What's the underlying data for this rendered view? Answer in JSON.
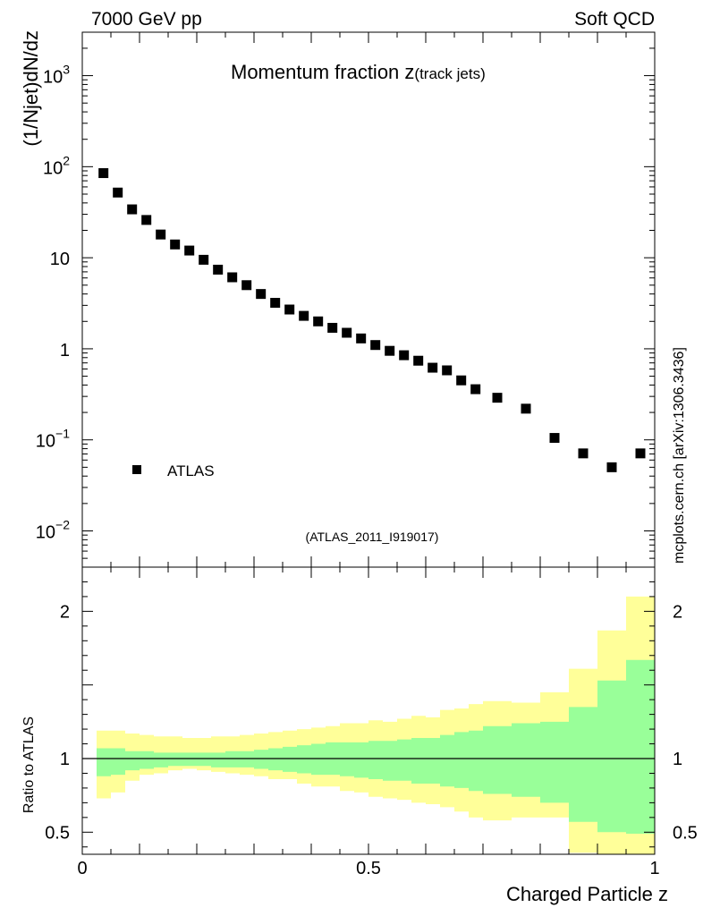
{
  "header": {
    "left": "7000 GeV pp",
    "right": "Soft QCD"
  },
  "watermark": "mcplots.cern.ch [arXiv:1306.3436]",
  "chart_data": [
    {
      "type": "scatter",
      "title_main": "Momentum fraction ",
      "title_z": "z",
      "title_sub": "(track jets)",
      "ylabel": "(1/Njet)dN/dz",
      "xlim": [
        0,
        1
      ],
      "ylim_log": [
        0.004,
        3000
      ],
      "yscale": "log",
      "ytick_labels": [
        {
          "value": 0.01,
          "base": "10",
          "exp": "−2"
        },
        {
          "value": 0.1,
          "base": "10",
          "exp": "−1"
        },
        {
          "value": 1,
          "base": "1",
          "exp": ""
        },
        {
          "value": 10,
          "base": "10",
          "exp": ""
        },
        {
          "value": 100,
          "base": "10",
          "exp": "2"
        },
        {
          "value": 1000,
          "base": "10",
          "exp": "3"
        }
      ],
      "legend": {
        "label": "ATLAS",
        "placement": "lower-left"
      },
      "analysis_label": "(ATLAS_2011_I919017)",
      "series": [
        {
          "name": "ATLAS",
          "marker": "square",
          "color": "#000000",
          "x": [
            0.037,
            0.062,
            0.087,
            0.112,
            0.137,
            0.162,
            0.187,
            0.212,
            0.237,
            0.262,
            0.287,
            0.312,
            0.337,
            0.362,
            0.387,
            0.412,
            0.437,
            0.462,
            0.487,
            0.512,
            0.537,
            0.562,
            0.587,
            0.612,
            0.637,
            0.662,
            0.687,
            0.725,
            0.775,
            0.825,
            0.875,
            0.925,
            0.975
          ],
          "y": [
            85,
            52,
            34,
            26,
            18,
            14,
            12,
            9.5,
            7.4,
            6.1,
            5.0,
            4.0,
            3.2,
            2.7,
            2.3,
            2.0,
            1.7,
            1.5,
            1.3,
            1.1,
            0.95,
            0.85,
            0.74,
            0.62,
            0.58,
            0.45,
            0.36,
            0.29,
            0.22,
            0.105,
            0.071,
            0.05,
            0.071
          ]
        }
      ]
    },
    {
      "type": "area",
      "ylabel": "Ratio to ATLAS",
      "xlabel": "Charged Particle z",
      "xlim": [
        0,
        1
      ],
      "ylim": [
        0.35,
        2.3
      ],
      "yticks": [
        0.5,
        1,
        2
      ],
      "ytick_labels": [
        "0.5",
        "1",
        "2"
      ],
      "xticks": [
        0,
        0.5,
        1
      ],
      "xtick_labels": [
        "0",
        "0.5",
        "1"
      ],
      "reference_line": 1,
      "bin_edges": [
        0.025,
        0.05,
        0.075,
        0.1,
        0.125,
        0.15,
        0.175,
        0.2,
        0.225,
        0.25,
        0.275,
        0.3,
        0.325,
        0.35,
        0.375,
        0.4,
        0.425,
        0.45,
        0.475,
        0.5,
        0.525,
        0.55,
        0.575,
        0.6,
        0.625,
        0.65,
        0.675,
        0.7,
        0.75,
        0.8,
        0.85,
        0.9,
        0.95,
        1.0
      ],
      "bands": [
        {
          "name": "total uncertainty",
          "color": "#ffff99",
          "upper": [
            1.19,
            1.19,
            1.17,
            1.16,
            1.15,
            1.15,
            1.14,
            1.14,
            1.15,
            1.15,
            1.16,
            1.17,
            1.18,
            1.19,
            1.2,
            1.21,
            1.22,
            1.24,
            1.24,
            1.26,
            1.25,
            1.27,
            1.29,
            1.28,
            1.33,
            1.34,
            1.37,
            1.39,
            1.38,
            1.45,
            1.61,
            1.87,
            2.1,
            2.14
          ],
          "lower": [
            0.73,
            0.77,
            0.85,
            0.89,
            0.9,
            0.92,
            0.93,
            0.92,
            0.91,
            0.9,
            0.89,
            0.88,
            0.86,
            0.86,
            0.83,
            0.81,
            0.81,
            0.78,
            0.77,
            0.74,
            0.73,
            0.72,
            0.7,
            0.69,
            0.67,
            0.64,
            0.6,
            0.58,
            0.6,
            0.6,
            0.36,
            0.35,
            0.35,
            0.35
          ]
        },
        {
          "name": "statistical uncertainty",
          "color": "#99ff99",
          "upper": [
            1.07,
            1.07,
            1.05,
            1.05,
            1.04,
            1.04,
            1.04,
            1.04,
            1.04,
            1.05,
            1.05,
            1.06,
            1.07,
            1.08,
            1.09,
            1.1,
            1.11,
            1.11,
            1.11,
            1.12,
            1.12,
            1.13,
            1.14,
            1.14,
            1.16,
            1.18,
            1.19,
            1.22,
            1.24,
            1.25,
            1.35,
            1.53,
            1.67,
            1.67
          ],
          "lower": [
            0.88,
            0.89,
            0.92,
            0.93,
            0.94,
            0.95,
            0.95,
            0.95,
            0.94,
            0.94,
            0.94,
            0.93,
            0.92,
            0.91,
            0.9,
            0.89,
            0.89,
            0.88,
            0.87,
            0.86,
            0.85,
            0.85,
            0.83,
            0.83,
            0.81,
            0.8,
            0.78,
            0.76,
            0.74,
            0.7,
            0.57,
            0.5,
            0.49,
            0.49
          ]
        }
      ]
    }
  ]
}
